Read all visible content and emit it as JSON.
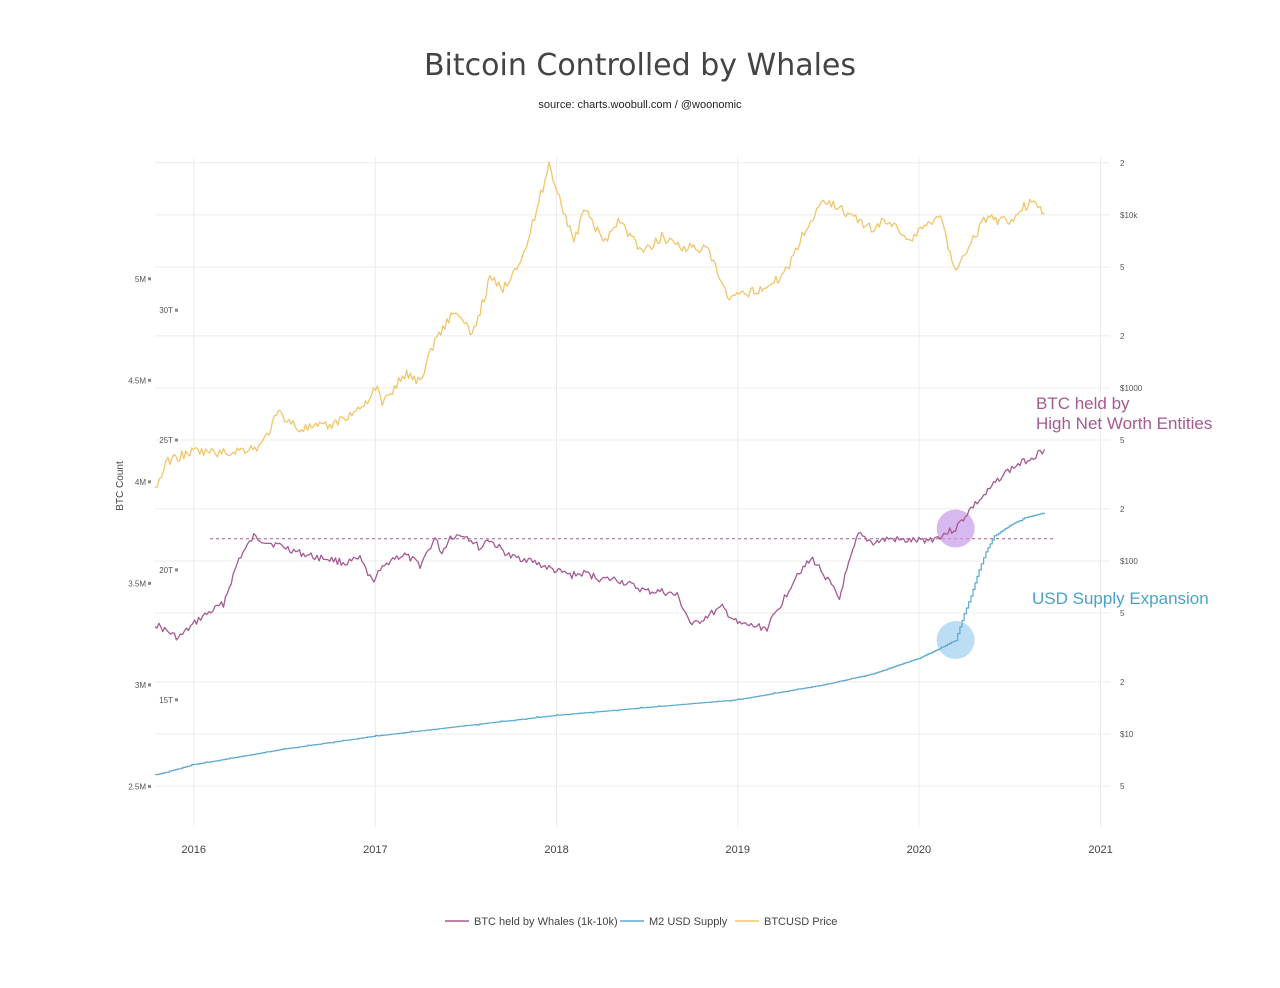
{
  "chart_data": {
    "type": "line",
    "title": "Bitcoin Controlled by Whales",
    "subtitle": "source: charts.woobull.com / @woonomic",
    "ylabel": "BTC Count",
    "x_ticks": [
      "2016",
      "2017",
      "2018",
      "2019",
      "2020",
      "2021"
    ],
    "xlim": [
      "2015-10-15",
      "2021-01-20"
    ],
    "y_axes": {
      "btc_count": {
        "ticks": [
          "5M",
          "4.5M",
          "4M",
          "3.5M",
          "3M",
          "2.5M"
        ],
        "tick_values": [
          5000000,
          4500000,
          4000000,
          3500000,
          3000000,
          2500000
        ],
        "range": [
          2300000,
          5600000
        ]
      },
      "m2_supply": {
        "ticks": [
          "30T",
          "25T",
          "20T",
          "15T"
        ],
        "tick_values": [
          30,
          25,
          20,
          15
        ],
        "unit": "T",
        "range": [
          10.1,
          35.9
        ]
      },
      "btc_price": {
        "scale": "log",
        "ticks": [
          "2",
          "$10k",
          "5",
          "2",
          "$1000",
          "5",
          "2",
          "$100",
          "5",
          "2",
          "$10",
          "5"
        ],
        "tick_values": [
          20000,
          10000,
          5000,
          2000,
          1000,
          500,
          200,
          100,
          50,
          20,
          10,
          5
        ],
        "range": [
          2.9,
          21600
        ]
      }
    },
    "series": [
      {
        "name": "BTC held by Whales (1k-10k)",
        "color": "#a65a94",
        "axis": "btc_count",
        "x": [
          "2015-10-15",
          "2015-12-01",
          "2016-01-15",
          "2016-03-01",
          "2016-04-01",
          "2016-05-01",
          "2016-06-01",
          "2016-07-01",
          "2016-08-01",
          "2016-09-01",
          "2016-10-01",
          "2016-11-01",
          "2016-12-01",
          "2016-12-25",
          "2017-02-01",
          "2017-03-01",
          "2017-04-01",
          "2017-05-01",
          "2017-05-15",
          "2017-06-01",
          "2017-07-01",
          "2017-08-01",
          "2017-08-15",
          "2017-10-01",
          "2017-11-01",
          "2017-12-01",
          "2018-01-01",
          "2018-02-01",
          "2018-03-01",
          "2018-04-01",
          "2018-05-01",
          "2018-06-01",
          "2018-07-01",
          "2018-08-01",
          "2018-09-01",
          "2018-10-01",
          "2018-11-01",
          "2018-12-01",
          "2019-01-01",
          "2019-02-01",
          "2019-03-01",
          "2019-04-01",
          "2019-05-01",
          "2019-06-01",
          "2019-07-01",
          "2019-07-25",
          "2019-08-01",
          "2019-09-01",
          "2019-10-01",
          "2019-11-01",
          "2019-12-01",
          "2020-01-01",
          "2020-02-01",
          "2020-03-15",
          "2020-04-15",
          "2020-05-15",
          "2020-06-15",
          "2020-07-15",
          "2020-08-15",
          "2020-09-10"
        ],
        "values": [
          3300000,
          3230000,
          3330000,
          3400000,
          3620000,
          3730000,
          3700000,
          3680000,
          3650000,
          3630000,
          3620000,
          3600000,
          3620000,
          3510000,
          3620000,
          3640000,
          3590000,
          3720000,
          3650000,
          3730000,
          3740000,
          3670000,
          3720000,
          3630000,
          3620000,
          3590000,
          3560000,
          3540000,
          3550000,
          3520000,
          3520000,
          3490000,
          3460000,
          3460000,
          3440000,
          3290000,
          3340000,
          3380000,
          3300000,
          3290000,
          3280000,
          3410000,
          3550000,
          3620000,
          3520000,
          3420000,
          3500000,
          3740000,
          3700000,
          3720000,
          3710000,
          3710000,
          3720000,
          3770000,
          3870000,
          3940000,
          4030000,
          4080000,
          4120000,
          4160000
        ]
      },
      {
        "name": "M2 USD Supply",
        "color": "#5aa8cf",
        "axis": "m2_supply",
        "x": [
          "2015-10-15",
          "2016-01-01",
          "2016-07-01",
          "2017-01-01",
          "2017-07-01",
          "2018-01-01",
          "2018-07-01",
          "2019-01-01",
          "2019-07-01",
          "2019-10-01",
          "2020-01-01",
          "2020-02-15",
          "2020-03-15",
          "2020-04-01",
          "2020-04-15",
          "2020-05-01",
          "2020-05-15",
          "2020-06-01",
          "2020-07-01",
          "2020-08-01",
          "2020-09-10"
        ],
        "values": [
          12.1,
          12.5,
          13.1,
          13.6,
          14.0,
          14.4,
          14.7,
          15.0,
          15.6,
          16.0,
          16.6,
          17.0,
          17.3,
          18.3,
          19.0,
          20.0,
          20.7,
          21.3,
          21.7,
          22.0,
          22.2
        ]
      },
      {
        "name": "BTCUSD Price",
        "color": "#f0c66a",
        "axis": "btc_price",
        "x": [
          "2015-10-15",
          "2015-11-10",
          "2016-01-01",
          "2016-03-01",
          "2016-05-15",
          "2016-06-20",
          "2016-08-01",
          "2016-10-01",
          "2016-12-01",
          "2017-01-05",
          "2017-01-15",
          "2017-03-01",
          "2017-04-01",
          "2017-05-01",
          "2017-06-10",
          "2017-07-15",
          "2017-08-20",
          "2017-09-15",
          "2017-11-01",
          "2017-12-17",
          "2018-02-05",
          "2018-03-01",
          "2018-04-05",
          "2018-05-05",
          "2018-06-25",
          "2018-08-01",
          "2018-09-15",
          "2018-11-01",
          "2018-12-15",
          "2019-01-15",
          "2019-03-15",
          "2019-04-15",
          "2019-05-15",
          "2019-06-26",
          "2019-08-15",
          "2019-10-01",
          "2019-10-26",
          "2019-12-15",
          "2020-02-13",
          "2020-03-12",
          "2020-04-15",
          "2020-05-15",
          "2020-07-01",
          "2020-07-27",
          "2020-08-15",
          "2020-09-10"
        ],
        "values": [
          260,
          380,
          430,
          420,
          460,
          720,
          580,
          600,
          760,
          1000,
          800,
          1200,
          1100,
          1900,
          2800,
          2000,
          4300,
          3700,
          6500,
          19500,
          7000,
          11000,
          6800,
          9500,
          6000,
          7500,
          6500,
          6300,
          3200,
          3500,
          4000,
          5200,
          8000,
          12500,
          10000,
          8200,
          9500,
          7200,
          10300,
          4800,
          7000,
          9500,
          9200,
          11000,
          11800,
          10300
        ]
      }
    ],
    "annotations": [
      {
        "text": "BTC held by",
        "color": "#a65a94"
      },
      {
        "text": "High Net Worth Entities",
        "color": "#a65a94"
      },
      {
        "text": "USD Supply Expansion",
        "color": "#4aa3cc"
      }
    ],
    "reference_line": {
      "value": 3720000,
      "axis": "btc_count",
      "style": "dashed",
      "color": "#a65a94"
    },
    "highlights": [
      {
        "series": "BTC held by Whales (1k-10k)",
        "x": "2020-03-15",
        "color": "#c79be8"
      },
      {
        "series": "M2 USD Supply",
        "x": "2020-03-15",
        "color": "#9fd0f0"
      }
    ],
    "legend": {
      "position": "bottom",
      "entries": [
        "BTC held by Whales (1k-10k)",
        "M2 USD Supply",
        "BTCUSD Price"
      ]
    },
    "grid": true
  }
}
